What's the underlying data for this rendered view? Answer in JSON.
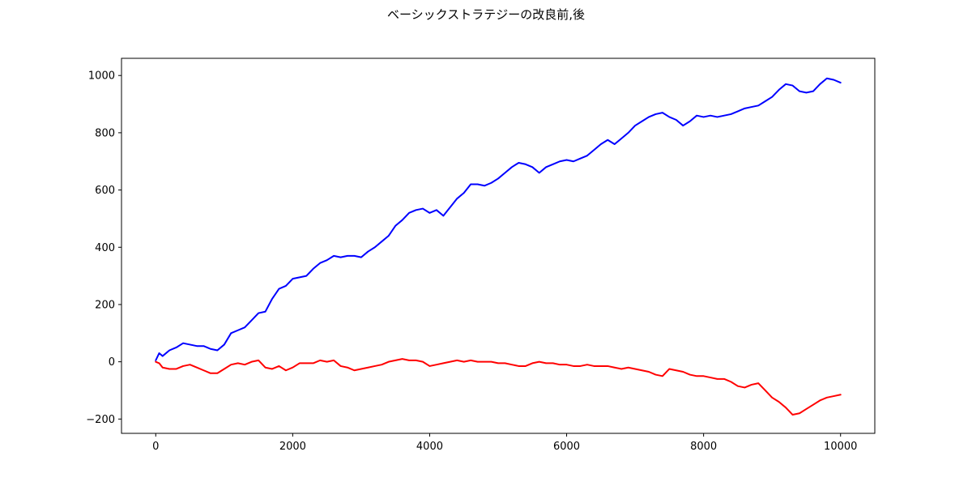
{
  "chart_data": {
    "type": "line",
    "title": "ベーシックストラテジーの改良前,後",
    "xlabel": "",
    "ylabel": "",
    "xlim": [
      -500,
      10500
    ],
    "ylim": [
      -250,
      1060
    ],
    "grid": false,
    "x_ticks": [
      0,
      2000,
      4000,
      6000,
      8000,
      10000
    ],
    "x_tick_labels": [
      "0",
      "2000",
      "4000",
      "6000",
      "8000",
      "10000"
    ],
    "y_ticks": [
      -200,
      0,
      200,
      400,
      600,
      800,
      1000
    ],
    "y_tick_labels": [
      "−200",
      "0",
      "200",
      "400",
      "600",
      "800",
      "1000"
    ],
    "series": [
      {
        "color": "#0000ff",
        "x": [
          0,
          50,
          100,
          200,
          300,
          400,
          500,
          600,
          700,
          800,
          900,
          1000,
          1100,
          1200,
          1300,
          1400,
          1500,
          1600,
          1700,
          1800,
          1900,
          2000,
          2100,
          2200,
          2300,
          2400,
          2500,
          2600,
          2700,
          2800,
          2900,
          3000,
          3100,
          3200,
          3300,
          3400,
          3500,
          3600,
          3700,
          3800,
          3900,
          4000,
          4100,
          4200,
          4300,
          4400,
          4500,
          4600,
          4700,
          4800,
          4900,
          5000,
          5100,
          5200,
          5300,
          5400,
          5500,
          5600,
          5700,
          5800,
          5900,
          6000,
          6100,
          6200,
          6300,
          6400,
          6500,
          6600,
          6700,
          6800,
          6900,
          7000,
          7100,
          7200,
          7300,
          7400,
          7500,
          7600,
          7700,
          7800,
          7900,
          8000,
          8100,
          8200,
          8300,
          8400,
          8500,
          8600,
          8700,
          8800,
          8900,
          9000,
          9100,
          9200,
          9300,
          9400,
          9500,
          9600,
          9700,
          9800,
          9900,
          10000
        ],
        "y": [
          5,
          30,
          20,
          40,
          50,
          65,
          60,
          55,
          55,
          45,
          40,
          60,
          100,
          110,
          120,
          145,
          170,
          175,
          220,
          255,
          265,
          290,
          295,
          300,
          325,
          345,
          355,
          370,
          365,
          370,
          370,
          365,
          385,
          400,
          420,
          440,
          475,
          495,
          520,
          530,
          535,
          520,
          530,
          510,
          540,
          570,
          590,
          620,
          620,
          615,
          625,
          640,
          660,
          680,
          695,
          690,
          680,
          660,
          680,
          690,
          700,
          705,
          700,
          710,
          720,
          740,
          760,
          775,
          760,
          780,
          800,
          825,
          840,
          855,
          865,
          870,
          855,
          845,
          825,
          840,
          860,
          855,
          860,
          855,
          860,
          865,
          875,
          885,
          890,
          895,
          910,
          925,
          950,
          970,
          965,
          945,
          940,
          945,
          970,
          990,
          985,
          975
        ]
      },
      {
        "color": "#ff0000",
        "x": [
          0,
          50,
          100,
          200,
          300,
          400,
          500,
          600,
          700,
          800,
          900,
          1000,
          1100,
          1200,
          1300,
          1400,
          1500,
          1600,
          1700,
          1800,
          1900,
          2000,
          2100,
          2200,
          2300,
          2400,
          2500,
          2600,
          2700,
          2800,
          2900,
          3000,
          3100,
          3200,
          3300,
          3400,
          3500,
          3600,
          3700,
          3800,
          3900,
          4000,
          4100,
          4200,
          4300,
          4400,
          4500,
          4600,
          4700,
          4800,
          4900,
          5000,
          5100,
          5200,
          5300,
          5400,
          5500,
          5600,
          5700,
          5800,
          5900,
          6000,
          6100,
          6200,
          6300,
          6400,
          6500,
          6600,
          6700,
          6800,
          6900,
          7000,
          7100,
          7200,
          7300,
          7400,
          7500,
          7600,
          7700,
          7800,
          7900,
          8000,
          8100,
          8200,
          8300,
          8400,
          8500,
          8600,
          8700,
          8800,
          8900,
          9000,
          9100,
          9200,
          9300,
          9400,
          9500,
          9600,
          9700,
          9800,
          9900,
          10000
        ],
        "y": [
          0,
          -5,
          -20,
          -25,
          -25,
          -15,
          -10,
          -20,
          -30,
          -40,
          -40,
          -25,
          -10,
          -5,
          -10,
          0,
          5,
          -20,
          -25,
          -15,
          -30,
          -20,
          -5,
          -5,
          -5,
          5,
          0,
          5,
          -15,
          -20,
          -30,
          -25,
          -20,
          -15,
          -10,
          0,
          5,
          10,
          5,
          5,
          0,
          -15,
          -10,
          -5,
          0,
          5,
          0,
          5,
          0,
          0,
          0,
          -5,
          -5,
          -10,
          -15,
          -15,
          -5,
          0,
          -5,
          -5,
          -10,
          -10,
          -15,
          -15,
          -10,
          -15,
          -15,
          -15,
          -20,
          -25,
          -20,
          -25,
          -30,
          -35,
          -45,
          -50,
          -25,
          -30,
          -35,
          -45,
          -50,
          -50,
          -55,
          -60,
          -60,
          -70,
          -85,
          -90,
          -80,
          -75,
          -100,
          -125,
          -140,
          -160,
          -185,
          -180,
          -165,
          -150,
          -135,
          -125,
          -120,
          -115
        ]
      }
    ]
  }
}
